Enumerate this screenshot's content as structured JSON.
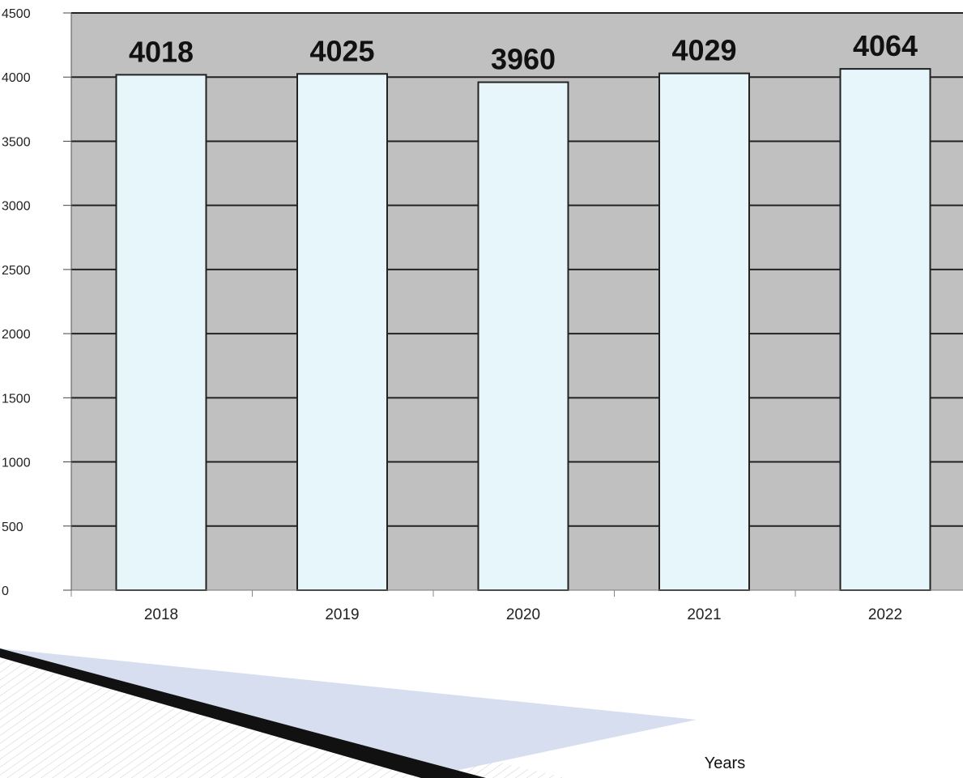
{
  "chart_data": {
    "type": "bar",
    "categories": [
      "2018",
      "2019",
      "2020",
      "2021",
      "2022"
    ],
    "values": [
      4018,
      4025,
      3960,
      4029,
      4064
    ],
    "data_labels": [
      "4018",
      "4025",
      "3960",
      "4029",
      "4064"
    ],
    "title": "",
    "xlabel": "Years",
    "ylabel": "",
    "ylim": [
      0,
      4500
    ],
    "yticks": [
      "0",
      "500",
      "1000",
      "1500",
      "2000",
      "2500",
      "3000",
      "3500",
      "4000",
      "4500"
    ],
    "grid": true,
    "legend": "none",
    "colors": {
      "plot_background": "#c0c0c0",
      "bar_fill": "#e6f6fa",
      "bar_stroke": "#222222",
      "gridline": "#222222",
      "arrow_dark": "#111111",
      "arrow_light": "#d6deef"
    }
  }
}
